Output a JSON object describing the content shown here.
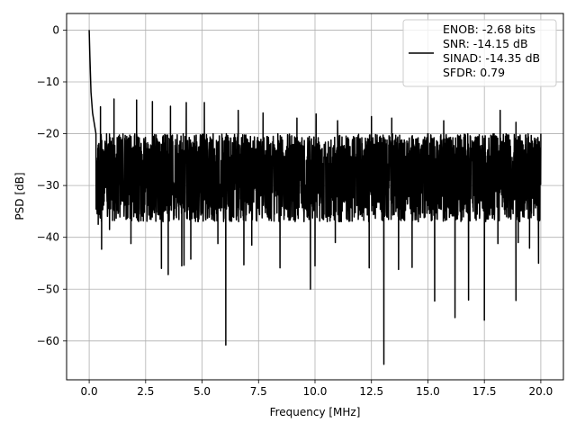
{
  "chart_data": {
    "type": "line",
    "xlabel": "Frequency [MHz]",
    "ylabel": "PSD [dB]",
    "xlim": [
      -1.0,
      21.0
    ],
    "ylim": [
      -67.5,
      3.2
    ],
    "xticks": [
      0.0,
      2.5,
      5.0,
      7.5,
      10.0,
      12.5,
      15.0,
      17.5,
      20.0
    ],
    "xtick_labels": [
      "0.0",
      "2.5",
      "5.0",
      "7.5",
      "10.0",
      "12.5",
      "15.0",
      "17.5",
      "20.0"
    ],
    "yticks": [
      0,
      -10,
      -20,
      -30,
      -40,
      -50,
      -60
    ],
    "ytick_labels": [
      "0",
      "−10",
      "−20",
      "−30",
      "−40",
      "−50",
      "−60"
    ],
    "grid": true,
    "legend_position": "top-right",
    "series": [
      {
        "name": "ENOB: -2.68 bits\nSNR: -14.15 dB\nSINAD: -14.35 dB\nSFDR: 0.79",
        "color": "#000000",
        "x_range": [
          0.0,
          20.0
        ],
        "peak": {
          "x": 0.0,
          "y": 0.0
        },
        "initial_decay": [
          [
            0.0,
            0.0
          ],
          [
            0.03,
            -5.0
          ],
          [
            0.08,
            -12.0
          ],
          [
            0.15,
            -16.0
          ],
          [
            0.3,
            -20.0
          ]
        ],
        "upper_envelope_db": -20.0,
        "lower_envelope_db": -37.0,
        "mean_db": -28.0,
        "notable_dips": [
          [
            0.4,
            -37.5
          ],
          [
            0.55,
            -42.3
          ],
          [
            0.9,
            -38.5
          ],
          [
            1.85,
            -41.2
          ],
          [
            3.2,
            -46.0
          ],
          [
            3.5,
            -47.2
          ],
          [
            4.1,
            -45.5
          ],
          [
            4.2,
            -45.4
          ],
          [
            4.5,
            -44.2
          ],
          [
            5.7,
            -41.2
          ],
          [
            6.05,
            -60.8
          ],
          [
            6.85,
            -45.3
          ],
          [
            7.2,
            -41.5
          ],
          [
            8.45,
            -45.9
          ],
          [
            9.8,
            -50.0
          ],
          [
            10.0,
            -45.5
          ],
          [
            10.9,
            -41.0
          ],
          [
            12.4,
            -45.9
          ],
          [
            13.05,
            -64.5
          ],
          [
            13.7,
            -46.2
          ],
          [
            14.3,
            -45.8
          ],
          [
            15.3,
            -52.3
          ],
          [
            16.2,
            -55.5
          ],
          [
            16.8,
            -52.1
          ],
          [
            17.5,
            -56.0
          ],
          [
            18.1,
            -41.2
          ],
          [
            18.9,
            -52.2
          ],
          [
            19.0,
            -41.0
          ],
          [
            19.5,
            -42.1
          ],
          [
            19.9,
            -45.0
          ]
        ],
        "notable_peaks": [
          [
            0.5,
            -14.8
          ],
          [
            1.1,
            -13.3
          ],
          [
            2.1,
            -13.5
          ],
          [
            2.8,
            -13.8
          ],
          [
            3.6,
            -14.7
          ],
          [
            4.3,
            -14.0
          ],
          [
            5.1,
            -14.0
          ],
          [
            6.6,
            -15.5
          ],
          [
            7.7,
            -16.0
          ],
          [
            9.2,
            -17.0
          ],
          [
            10.05,
            -16.2
          ],
          [
            11.0,
            -17.5
          ],
          [
            12.5,
            -16.7
          ],
          [
            13.4,
            -17.0
          ],
          [
            15.7,
            -17.5
          ],
          [
            18.2,
            -15.5
          ],
          [
            18.9,
            -17.8
          ],
          [
            20.0,
            -20.0
          ]
        ]
      }
    ]
  }
}
